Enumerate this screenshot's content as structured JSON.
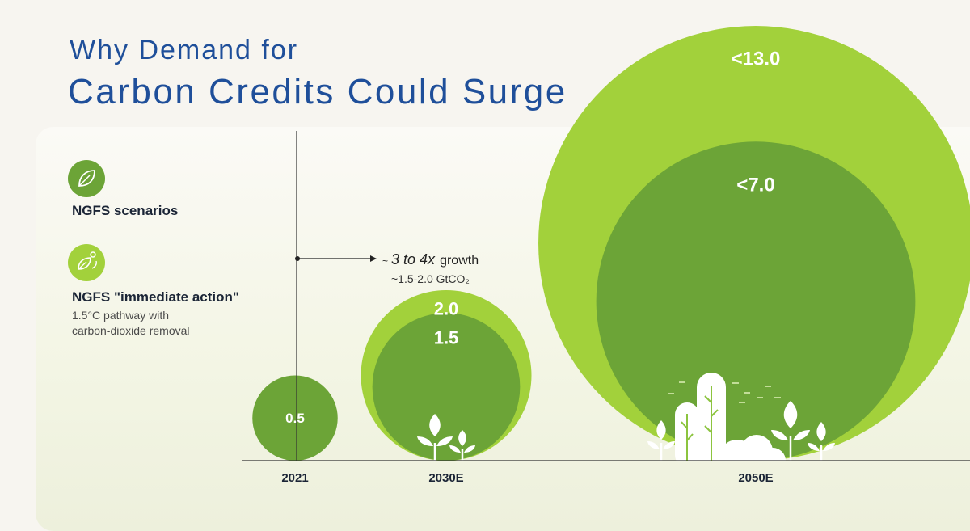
{
  "title": {
    "line1": "Why Demand for",
    "line2": "Carbon Credits Could Surge"
  },
  "legend": {
    "item1": {
      "label": "NGFS scenarios",
      "color": "#6ca437",
      "icon": "leaf-icon"
    },
    "item2": {
      "label": "NGFS \"immediate action\"",
      "sub1": "1.5°C pathway with",
      "sub2": "carbon-dioxide removal",
      "color": "#a2d13b",
      "icon": "eco-leaf-icon"
    }
  },
  "annotation": {
    "prefix": "~",
    "emph": "3 to 4x",
    "suffix": "growth",
    "detail": "~1.5-2.0 GtCO₂"
  },
  "chart_data": {
    "type": "bubble",
    "title": "Why Demand for Carbon Credits Could Surge",
    "unit": "GtCO₂",
    "categories": [
      "2021",
      "2030E",
      "2050E"
    ],
    "series": [
      {
        "name": "NGFS scenarios",
        "color": "#6ca437",
        "values": [
          0.5,
          1.5,
          7.0
        ],
        "labels": [
          "0.5",
          "1.5",
          "<7.0"
        ]
      },
      {
        "name": "NGFS \"immediate action\"",
        "color": "#a2d13b",
        "values": [
          null,
          2.0,
          13.0
        ],
        "labels": [
          "",
          "2.0",
          "<13.0"
        ]
      }
    ]
  }
}
